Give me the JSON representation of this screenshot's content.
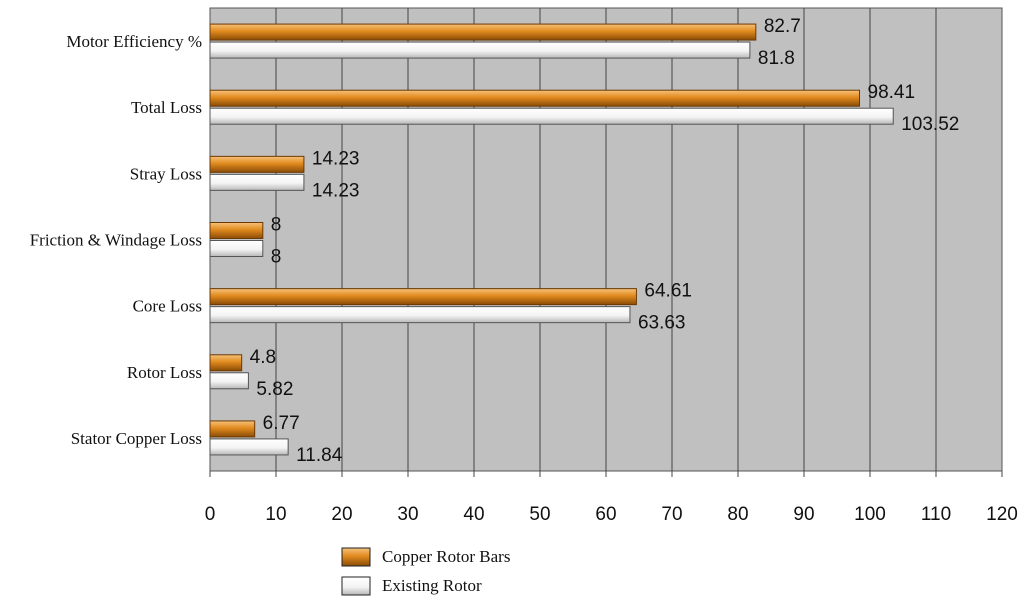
{
  "chart_data": {
    "type": "bar",
    "orientation": "horizontal",
    "categories": [
      "Motor Efficiency %",
      "Total Loss",
      "Stray Loss",
      "Friction & Windage Loss",
      "Core Loss",
      "Rotor Loss",
      "Stator Copper Loss"
    ],
    "series": [
      {
        "name": "Copper Rotor Bars",
        "color": "#e08a1e",
        "values": [
          82.7,
          98.41,
          14.23,
          8,
          64.61,
          4.8,
          6.77
        ],
        "labels": [
          "82.7",
          "98.41",
          "14.23",
          "8",
          "64.61",
          "4.8",
          "6.77"
        ]
      },
      {
        "name": "Existing Rotor",
        "color": "#f2f2f2",
        "values": [
          81.8,
          103.52,
          14.23,
          8,
          63.63,
          5.82,
          11.84
        ],
        "labels": [
          "81.8",
          "103.52",
          "14.23",
          "8",
          "63.63",
          "5.82",
          "11.84"
        ]
      }
    ],
    "xlim": [
      0,
      120
    ],
    "xticks": [
      "0",
      "10",
      "20",
      "30",
      "40",
      "50",
      "60",
      "70",
      "80",
      "90",
      "100",
      "110",
      "120"
    ],
    "grid": true,
    "plot_background": "#c0c0c0",
    "legend_position": "bottom",
    "title": "",
    "xlabel": "",
    "ylabel": ""
  }
}
